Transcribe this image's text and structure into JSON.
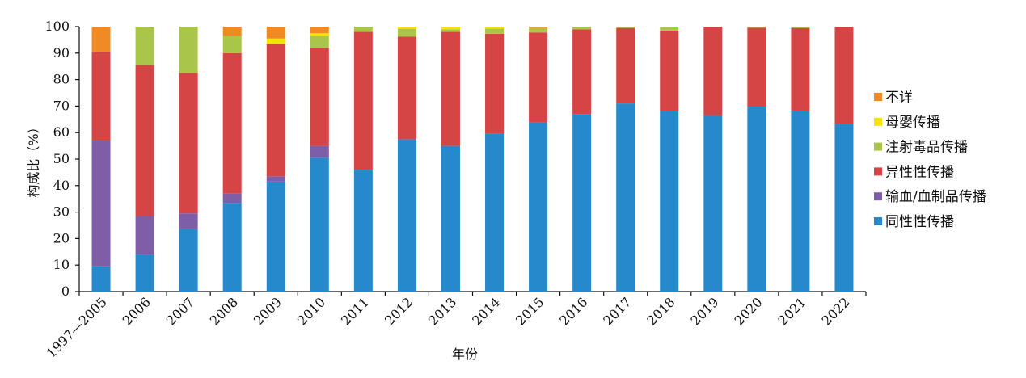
{
  "chart_data": {
    "type": "bar",
    "stacked": true,
    "ylabel": "构成比（%）",
    "xlabel": "年份",
    "ylim": [
      0,
      100
    ],
    "yticks": [
      0,
      10,
      20,
      30,
      40,
      50,
      60,
      70,
      80,
      90,
      100
    ],
    "grid": false,
    "legend_position": "right",
    "categories": [
      "1997—2005",
      "2006",
      "2007",
      "2008",
      "2009",
      "2010",
      "2011",
      "2012",
      "2013",
      "2014",
      "2015",
      "2016",
      "2017",
      "2018",
      "2019",
      "2020",
      "2021",
      "2022"
    ],
    "series": [
      {
        "name": "同性性传播",
        "color": "#2589cc",
        "values": [
          9.5,
          14.0,
          23.5,
          33.5,
          41.5,
          50.5,
          46.0,
          57.5,
          55.0,
          59.5,
          64.0,
          67.0,
          71.0,
          68.0,
          66.5,
          69.8,
          68.0,
          63.3
        ]
      },
      {
        "name": "输血/血制品传播",
        "color": "#7f5ea8",
        "values": [
          47.5,
          14.5,
          6.0,
          3.5,
          2.0,
          4.5,
          0.0,
          0.0,
          0.0,
          0.0,
          0.0,
          0.0,
          0.0,
          0.0,
          0.0,
          0.0,
          0.0,
          0.0
        ]
      },
      {
        "name": "异性性传播",
        "color": "#d64545",
        "values": [
          33.5,
          57.0,
          53.0,
          53.0,
          50.0,
          37.0,
          52.0,
          38.7,
          43.0,
          37.8,
          33.8,
          32.0,
          28.5,
          30.5,
          33.5,
          29.8,
          31.5,
          36.7
        ]
      },
      {
        "name": "注射毒品传播",
        "color": "#a9c64a",
        "values": [
          0.0,
          14.5,
          17.5,
          6.5,
          0.0,
          4.5,
          2.0,
          3.0,
          1.0,
          2.0,
          1.7,
          1.0,
          0.2,
          1.5,
          0.0,
          0.2,
          0.3,
          0.0
        ]
      },
      {
        "name": "母婴传播",
        "color": "#f5e400",
        "values": [
          0.0,
          0.0,
          0.0,
          0.0,
          2.0,
          1.0,
          0.0,
          0.8,
          1.0,
          0.7,
          0.0,
          0.0,
          0.3,
          0.0,
          0.0,
          0.0,
          0.2,
          0.0
        ]
      },
      {
        "name": "不详",
        "color": "#f08a24",
        "values": [
          9.5,
          0.0,
          0.0,
          3.5,
          4.5,
          2.5,
          0.0,
          0.0,
          0.0,
          0.0,
          0.5,
          0.0,
          0.0,
          0.0,
          0.0,
          0.2,
          0.0,
          0.0
        ]
      }
    ],
    "legend_order": [
      "不详",
      "母婴传播",
      "注射毒品传播",
      "异性性传播",
      "输血/血制品传播",
      "同性性传播"
    ]
  }
}
